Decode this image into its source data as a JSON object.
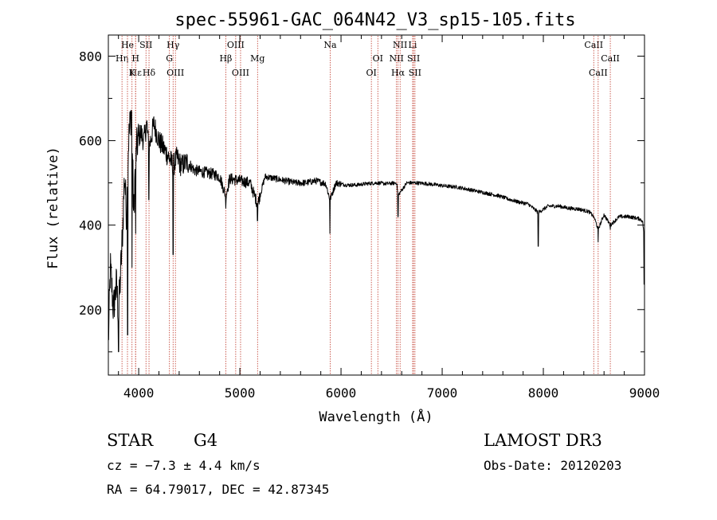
{
  "chart_data": {
    "type": "line",
    "title": "spec-55961-GAC_064N42_V3_sp15-105.fits",
    "xlabel": "Wavelength (Å)",
    "ylabel": "Flux (relative)",
    "xlim": [
      3700,
      9000
    ],
    "ylim": [
      45,
      850
    ],
    "xticks": [
      4000,
      5000,
      6000,
      7000,
      8000,
      9000
    ],
    "yticks": [
      200,
      400,
      600,
      800
    ],
    "grid": false,
    "spectrum_anchors": {
      "wavelength": [
        3700,
        3720,
        3750,
        3780,
        3800,
        3820,
        3840,
        3860,
        3880,
        3900,
        3930,
        3950,
        3970,
        3990,
        4020,
        4050,
        4080,
        4100,
        4150,
        4200,
        4250,
        4300,
        4340,
        4380,
        4420,
        4480,
        4550,
        4650,
        4750,
        4800,
        4861,
        4900,
        5000,
        5100,
        5175,
        5250,
        5350,
        5450,
        5550,
        5650,
        5750,
        5850,
        5890,
        5950,
        6050,
        6150,
        6250,
        6350,
        6450,
        6550,
        6563,
        6650,
        6750,
        6850,
        6950,
        7050,
        7150,
        7250,
        7350,
        7450,
        7550,
        7650,
        7750,
        7850,
        7950,
        8050,
        8150,
        8250,
        8350,
        8450,
        8500,
        8542,
        8600,
        8662,
        8750,
        8850,
        8950,
        8980,
        9000
      ],
      "flux": [
        120,
        300,
        200,
        260,
        190,
        280,
        380,
        520,
        420,
        600,
        680,
        420,
        560,
        600,
        620,
        600,
        640,
        580,
        640,
        600,
        580,
        560,
        540,
        560,
        540,
        550,
        530,
        525,
        520,
        515,
        470,
        510,
        505,
        500,
        450,
        515,
        510,
        505,
        500,
        500,
        505,
        498,
        460,
        500,
        495,
        495,
        498,
        500,
        498,
        500,
        470,
        500,
        500,
        498,
        495,
        492,
        490,
        485,
        480,
        475,
        470,
        462,
        455,
        450,
        430,
        445,
        445,
        440,
        438,
        432,
        420,
        390,
        425,
        400,
        420,
        420,
        415,
        410,
        370
      ]
    },
    "absorption_features": {
      "wavelength": [
        3800,
        3890,
        3934,
        3970,
        4101,
        4340,
        4861,
        5175,
        5890,
        6563,
        7950,
        8498,
        8542,
        8662,
        8995
      ],
      "flux": [
        100,
        140,
        300,
        380,
        460,
        330,
        440,
        410,
        380,
        420,
        350,
        420,
        360,
        390,
        260
      ]
    },
    "line_markers": [
      {
        "label": "Hε",
        "wavelength": 3970,
        "row": 3
      },
      {
        "label": "Hη",
        "wavelength": 3835,
        "row": 2
      },
      {
        "label": "He",
        "wavelength": 3889,
        "row": 1
      },
      {
        "label": "K",
        "wavelength": 3934,
        "row": 3
      },
      {
        "label": "H",
        "wavelength": 3969,
        "row": 2
      },
      {
        "label": "SII",
        "wavelength": 4072,
        "row": 1
      },
      {
        "label": "Hδ",
        "wavelength": 4102,
        "row": 3
      },
      {
        "label": "Hγ",
        "wavelength": 4340,
        "row": 1
      },
      {
        "label": "G",
        "wavelength": 4304,
        "row": 2
      },
      {
        "label": "OIII",
        "wavelength": 4363,
        "row": 3
      },
      {
        "label": "Hβ",
        "wavelength": 4861,
        "row": 2
      },
      {
        "label": "OIII",
        "wavelength": 4959,
        "row": 1
      },
      {
        "label": "OIII",
        "wavelength": 5007,
        "row": 3
      },
      {
        "label": "Mg",
        "wavelength": 5175,
        "row": 2
      },
      {
        "label": "Na",
        "wavelength": 5893,
        "row": 1
      },
      {
        "label": "OI",
        "wavelength": 6300,
        "row": 3
      },
      {
        "label": "OI",
        "wavelength": 6364,
        "row": 2
      },
      {
        "label": "NII",
        "wavelength": 6548,
        "row": 2
      },
      {
        "label": "NII",
        "wavelength": 6584,
        "row": 1
      },
      {
        "label": "Hα",
        "wavelength": 6563,
        "row": 3
      },
      {
        "label": "Li",
        "wavelength": 6708,
        "row": 1
      },
      {
        "label": "SII",
        "wavelength": 6717,
        "row": 2
      },
      {
        "label": "SII",
        "wavelength": 6731,
        "row": 3
      },
      {
        "label": "CaII",
        "wavelength": 8498,
        "row": 1
      },
      {
        "label": "CaII",
        "wavelength": 8542,
        "row": 3
      },
      {
        "label": "CaII",
        "wavelength": 8662,
        "row": 2
      }
    ]
  },
  "info": {
    "object_class": "STAR",
    "subclass": "G4",
    "survey": "LAMOST DR3",
    "redshift": "cz = −7.3 ± 4.4 km/s",
    "obs_date": "Obs-Date: 20120203",
    "coords": "RA =  64.79017, DEC =  42.87345"
  },
  "colors": {
    "spectrum": "#000000",
    "marker_line": "#c0392b",
    "axes": "#000000",
    "background": "#ffffff"
  }
}
